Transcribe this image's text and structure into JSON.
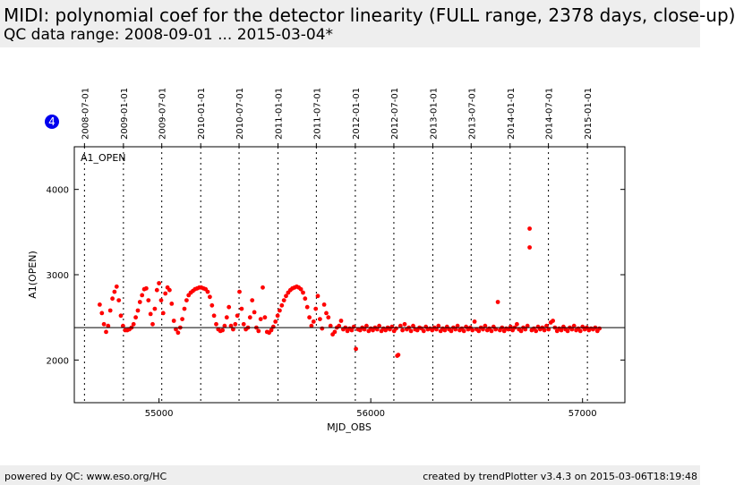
{
  "header": {
    "title": "MIDI: polynomial coef for the detector linearity (FULL range, 2378 days, close-up)",
    "subtitle": "QC data range: 2008-09-01 ... 2015-03-04*"
  },
  "badge": {
    "value": "4",
    "color": "#0000ee"
  },
  "footer": {
    "left": "powered by QC: www.eso.org/HC",
    "right": "created by trendPlotter v3.4.3 on 2015-03-06T18:19:48"
  },
  "colors": {
    "points": "#ff0000",
    "reference_line": "#000000"
  },
  "chart_data": {
    "type": "scatter",
    "panel_label": "A1_OPEN",
    "xlabel": "MJD_OBS",
    "ylabel": "A1(OPEN)",
    "xlim": [
      54600,
      57200
    ],
    "ylim": [
      1500,
      4500
    ],
    "xticks": [
      55000,
      56000,
      57000
    ],
    "yticks": [
      2000,
      3000,
      4000
    ],
    "reference_line": 2380,
    "date_ticks": [
      {
        "label": "2008-07-01",
        "mjd": 54648
      },
      {
        "label": "2009-01-01",
        "mjd": 54832
      },
      {
        "label": "2009-07-01",
        "mjd": 55013
      },
      {
        "label": "2010-01-01",
        "mjd": 55197
      },
      {
        "label": "2010-07-01",
        "mjd": 55378
      },
      {
        "label": "2011-01-01",
        "mjd": 55562
      },
      {
        "label": "2011-07-01",
        "mjd": 55743
      },
      {
        "label": "2012-01-01",
        "mjd": 55927
      },
      {
        "label": "2012-07-01",
        "mjd": 56109
      },
      {
        "label": "2013-01-01",
        "mjd": 56293
      },
      {
        "label": "2013-07-01",
        "mjd": 56474
      },
      {
        "label": "2014-01-01",
        "mjd": 56658
      },
      {
        "label": "2014-07-01",
        "mjd": 56839
      },
      {
        "label": "2015-01-01",
        "mjd": 57023
      }
    ],
    "series": [
      {
        "name": "A1_OPEN",
        "points": [
          [
            54720,
            2650
          ],
          [
            54730,
            2550
          ],
          [
            54740,
            2420
          ],
          [
            54750,
            2330
          ],
          [
            54760,
            2400
          ],
          [
            54770,
            2580
          ],
          [
            54780,
            2720
          ],
          [
            54790,
            2800
          ],
          [
            54800,
            2860
          ],
          [
            54810,
            2700
          ],
          [
            54820,
            2520
          ],
          [
            54830,
            2400
          ],
          [
            54840,
            2350
          ],
          [
            54850,
            2350
          ],
          [
            54860,
            2360
          ],
          [
            54870,
            2380
          ],
          [
            54880,
            2420
          ],
          [
            54890,
            2500
          ],
          [
            54900,
            2580
          ],
          [
            54910,
            2680
          ],
          [
            54920,
            2760
          ],
          [
            54930,
            2830
          ],
          [
            54940,
            2840
          ],
          [
            54950,
            2700
          ],
          [
            54960,
            2540
          ],
          [
            54970,
            2420
          ],
          [
            54980,
            2600
          ],
          [
            54990,
            2820
          ],
          [
            55000,
            2900
          ],
          [
            55010,
            2700
          ],
          [
            55020,
            2550
          ],
          [
            55030,
            2780
          ],
          [
            55040,
            2850
          ],
          [
            55050,
            2820
          ],
          [
            55060,
            2660
          ],
          [
            55070,
            2460
          ],
          [
            55080,
            2360
          ],
          [
            55090,
            2320
          ],
          [
            55100,
            2380
          ],
          [
            55110,
            2480
          ],
          [
            55120,
            2600
          ],
          [
            55130,
            2700
          ],
          [
            55140,
            2760
          ],
          [
            55150,
            2790
          ],
          [
            55160,
            2810
          ],
          [
            55170,
            2830
          ],
          [
            55180,
            2840
          ],
          [
            55190,
            2850
          ],
          [
            55200,
            2850
          ],
          [
            55210,
            2840
          ],
          [
            55220,
            2830
          ],
          [
            55230,
            2800
          ],
          [
            55240,
            2740
          ],
          [
            55250,
            2640
          ],
          [
            55260,
            2520
          ],
          [
            55270,
            2420
          ],
          [
            55280,
            2360
          ],
          [
            55290,
            2340
          ],
          [
            55300,
            2350
          ],
          [
            55310,
            2400
          ],
          [
            55320,
            2500
          ],
          [
            55330,
            2620
          ],
          [
            55340,
            2400
          ],
          [
            55350,
            2360
          ],
          [
            55360,
            2420
          ],
          [
            55370,
            2520
          ],
          [
            55380,
            2800
          ],
          [
            55390,
            2600
          ],
          [
            55400,
            2420
          ],
          [
            55410,
            2360
          ],
          [
            55420,
            2380
          ],
          [
            55430,
            2500
          ],
          [
            55440,
            2700
          ],
          [
            55450,
            2560
          ],
          [
            55460,
            2380
          ],
          [
            55470,
            2340
          ],
          [
            55480,
            2480
          ],
          [
            55490,
            2850
          ],
          [
            55500,
            2500
          ],
          [
            55510,
            2330
          ],
          [
            55520,
            2320
          ],
          [
            55530,
            2350
          ],
          [
            55540,
            2390
          ],
          [
            55550,
            2450
          ],
          [
            55560,
            2520
          ],
          [
            55570,
            2580
          ],
          [
            55580,
            2640
          ],
          [
            55590,
            2700
          ],
          [
            55600,
            2750
          ],
          [
            55610,
            2790
          ],
          [
            55620,
            2820
          ],
          [
            55630,
            2840
          ],
          [
            55640,
            2850
          ],
          [
            55650,
            2860
          ],
          [
            55660,
            2850
          ],
          [
            55670,
            2830
          ],
          [
            55680,
            2790
          ],
          [
            55690,
            2720
          ],
          [
            55700,
            2620
          ],
          [
            55710,
            2500
          ],
          [
            55720,
            2400
          ],
          [
            55730,
            2450
          ],
          [
            55740,
            2600
          ],
          [
            55750,
            2750
          ],
          [
            55760,
            2480
          ],
          [
            55770,
            2370
          ],
          [
            55780,
            2650
          ],
          [
            55790,
            2550
          ],
          [
            55800,
            2500
          ],
          [
            55810,
            2400
          ],
          [
            55820,
            2300
          ],
          [
            55830,
            2330
          ],
          [
            55840,
            2380
          ],
          [
            55850,
            2400
          ],
          [
            55860,
            2460
          ],
          [
            55870,
            2360
          ],
          [
            55880,
            2380
          ],
          [
            55890,
            2340
          ],
          [
            55900,
            2370
          ],
          [
            55910,
            2350
          ],
          [
            55920,
            2390
          ],
          [
            55930,
            2130
          ],
          [
            55940,
            2360
          ],
          [
            55950,
            2350
          ],
          [
            55960,
            2380
          ],
          [
            55970,
            2360
          ],
          [
            55980,
            2400
          ],
          [
            55990,
            2340
          ],
          [
            56000,
            2370
          ],
          [
            56010,
            2350
          ],
          [
            56020,
            2380
          ],
          [
            56030,
            2360
          ],
          [
            56040,
            2400
          ],
          [
            56050,
            2340
          ],
          [
            56060,
            2370
          ],
          [
            56070,
            2350
          ],
          [
            56080,
            2380
          ],
          [
            56090,
            2360
          ],
          [
            56100,
            2390
          ],
          [
            56110,
            2340
          ],
          [
            56120,
            2370
          ],
          [
            56125,
            2050
          ],
          [
            56130,
            2060
          ],
          [
            56140,
            2400
          ],
          [
            56150,
            2350
          ],
          [
            56160,
            2420
          ],
          [
            56170,
            2360
          ],
          [
            56180,
            2380
          ],
          [
            56190,
            2340
          ],
          [
            56200,
            2400
          ],
          [
            56210,
            2360
          ],
          [
            56220,
            2350
          ],
          [
            56230,
            2380
          ],
          [
            56240,
            2370
          ],
          [
            56250,
            2340
          ],
          [
            56260,
            2390
          ],
          [
            56270,
            2360
          ],
          [
            56280,
            2370
          ],
          [
            56290,
            2350
          ],
          [
            56300,
            2380
          ],
          [
            56310,
            2360
          ],
          [
            56320,
            2400
          ],
          [
            56330,
            2340
          ],
          [
            56340,
            2370
          ],
          [
            56350,
            2350
          ],
          [
            56360,
            2390
          ],
          [
            56370,
            2360
          ],
          [
            56380,
            2340
          ],
          [
            56390,
            2380
          ],
          [
            56400,
            2360
          ],
          [
            56410,
            2400
          ],
          [
            56420,
            2350
          ],
          [
            56430,
            2370
          ],
          [
            56440,
            2340
          ],
          [
            56450,
            2390
          ],
          [
            56460,
            2360
          ],
          [
            56470,
            2380
          ],
          [
            56480,
            2350
          ],
          [
            56490,
            2450
          ],
          [
            56500,
            2360
          ],
          [
            56510,
            2340
          ],
          [
            56520,
            2380
          ],
          [
            56530,
            2360
          ],
          [
            56540,
            2400
          ],
          [
            56550,
            2350
          ],
          [
            56560,
            2370
          ],
          [
            56570,
            2340
          ],
          [
            56580,
            2390
          ],
          [
            56590,
            2360
          ],
          [
            56600,
            2680
          ],
          [
            56610,
            2350
          ],
          [
            56620,
            2380
          ],
          [
            56630,
            2340
          ],
          [
            56640,
            2370
          ],
          [
            56650,
            2360
          ],
          [
            56660,
            2390
          ],
          [
            56670,
            2350
          ],
          [
            56680,
            2380
          ],
          [
            56690,
            2420
          ],
          [
            56700,
            2360
          ],
          [
            56710,
            2340
          ],
          [
            56720,
            2380
          ],
          [
            56730,
            2360
          ],
          [
            56740,
            2400
          ],
          [
            56750,
            3540
          ],
          [
            56750,
            3320
          ],
          [
            56760,
            2350
          ],
          [
            56770,
            2370
          ],
          [
            56780,
            2340
          ],
          [
            56790,
            2390
          ],
          [
            56800,
            2360
          ],
          [
            56810,
            2380
          ],
          [
            56820,
            2350
          ],
          [
            56830,
            2400
          ],
          [
            56840,
            2360
          ],
          [
            56850,
            2440
          ],
          [
            56860,
            2460
          ],
          [
            56870,
            2380
          ],
          [
            56880,
            2340
          ],
          [
            56890,
            2370
          ],
          [
            56900,
            2350
          ],
          [
            56910,
            2390
          ],
          [
            56920,
            2360
          ],
          [
            56930,
            2340
          ],
          [
            56940,
            2380
          ],
          [
            56950,
            2360
          ],
          [
            56960,
            2400
          ],
          [
            56970,
            2350
          ],
          [
            56980,
            2370
          ],
          [
            56990,
            2340
          ],
          [
            57000,
            2390
          ],
          [
            57010,
            2360
          ],
          [
            57020,
            2380
          ],
          [
            57030,
            2350
          ],
          [
            57040,
            2370
          ],
          [
            57050,
            2360
          ],
          [
            57060,
            2380
          ],
          [
            57070,
            2340
          ],
          [
            57080,
            2370
          ]
        ]
      }
    ]
  }
}
